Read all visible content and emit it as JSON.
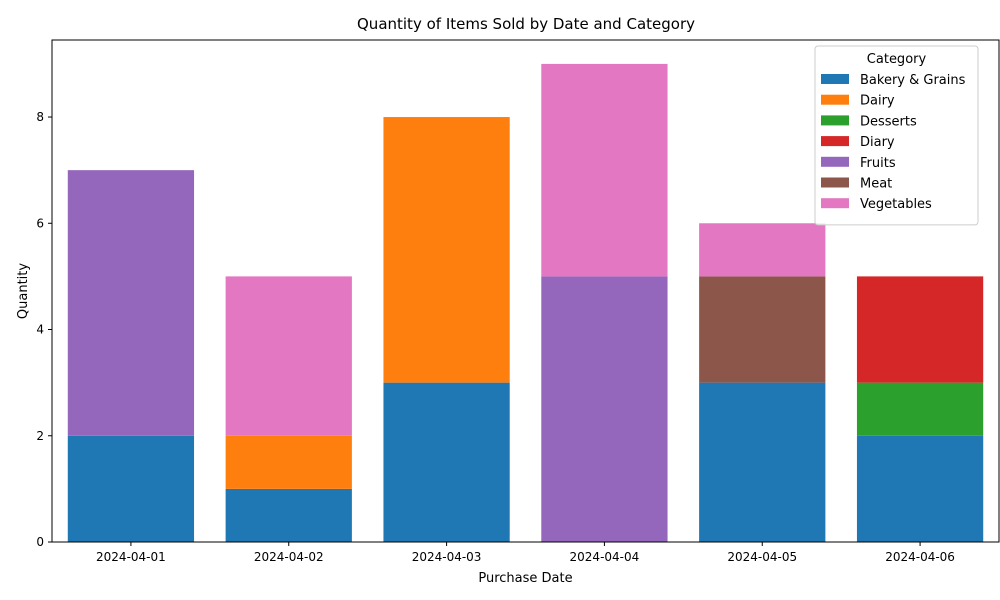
{
  "chart_data": {
    "type": "bar",
    "stacked": true,
    "title": "Quantity of Items Sold by Date and Category",
    "xlabel": "Purchase Date",
    "ylabel": "Quantity",
    "categories": [
      "2024-04-01",
      "2024-04-02",
      "2024-04-03",
      "2024-04-04",
      "2024-04-05",
      "2024-04-06"
    ],
    "ylim": [
      0,
      9.45
    ],
    "yticks": [
      0,
      2,
      4,
      6,
      8
    ],
    "grid": false,
    "legend": {
      "title": "Category",
      "placement": "top-right"
    },
    "series": [
      {
        "name": "Bakery & Grains",
        "color": "#1f77b4",
        "values": [
          2,
          1,
          3,
          0,
          3,
          2
        ]
      },
      {
        "name": "Dairy",
        "color": "#ff7f0e",
        "values": [
          0,
          1,
          5,
          0,
          0,
          0
        ]
      },
      {
        "name": "Desserts",
        "color": "#2ca02c",
        "values": [
          0,
          0,
          0,
          0,
          0,
          1
        ]
      },
      {
        "name": "Diary",
        "color": "#d62728",
        "values": [
          0,
          0,
          0,
          0,
          0,
          2
        ]
      },
      {
        "name": "Fruits",
        "color": "#9467bd",
        "values": [
          5,
          0,
          0,
          5,
          0,
          0
        ]
      },
      {
        "name": "Meat",
        "color": "#8c564b",
        "values": [
          0,
          0,
          0,
          0,
          2,
          0
        ]
      },
      {
        "name": "Vegetables",
        "color": "#e377c2",
        "values": [
          0,
          3,
          0,
          4,
          1,
          0
        ]
      }
    ]
  }
}
